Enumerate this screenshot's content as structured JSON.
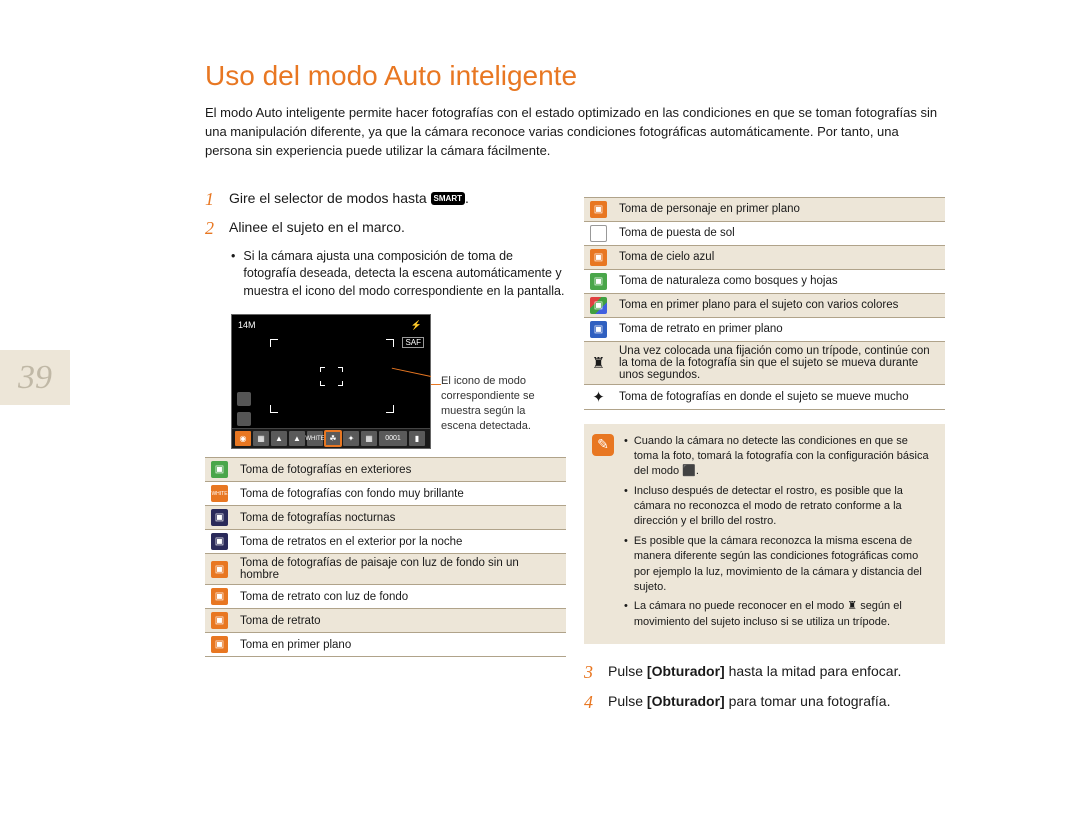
{
  "page_number": "39",
  "title": "Uso del modo Auto inteligente",
  "intro": "El modo Auto inteligente permite hacer fotografías con el estado optimizado en las condiciones en que se toman fotografías sin una manipulación diferente, ya que la cámara reconoce varias condiciones fotográficas automáticamente. Por tanto, una persona sin experiencia puede utilizar la cámara fácilmente.",
  "colors": {
    "accent": "#e87722",
    "page_tab_bg": "#ede6d8",
    "page_number_color": "#c0b8a6",
    "table_border": "#b0a38a"
  },
  "steps": {
    "s1": {
      "num": "1",
      "text": "Gire el selector de modos hasta",
      "icon_label": "SMART"
    },
    "s2": {
      "num": "2",
      "text": "Alinee el sujeto en el marco."
    },
    "s2_bullet": "Si la cámara ajusta una composición de toma de fotografía deseada, detecta la escena automáticamente y muestra el icono del modo correspondiente en la pantalla.",
    "s3": {
      "num": "3",
      "prefix": "Pulse ",
      "bold": "[Obturador]",
      "suffix": " hasta la mitad para enfocar."
    },
    "s4": {
      "num": "4",
      "prefix": "Pulse ",
      "bold": "[Obturador]",
      "suffix": " para tomar una fotografía."
    }
  },
  "lcd": {
    "resolution": "14M",
    "saf": "SAF",
    "counter": "0001",
    "caption": "El icono de modo correspondiente se muestra según la escena detectada."
  },
  "left_table": [
    {
      "color": "#4aa64a",
      "desc": "Toma de fotografías en exteriores"
    },
    {
      "color": "#e87722",
      "label": "WHITE",
      "desc": "Toma de fotografías con fondo muy brillante"
    },
    {
      "color": "#2a2a5a",
      "desc": "Toma de fotografías nocturnas"
    },
    {
      "color": "#2a2a5a",
      "desc": "Toma de retratos en el exterior por la noche"
    },
    {
      "color": "#e87722",
      "desc": "Toma de fotografías de paisaje con luz de fondo sin un hombre"
    },
    {
      "color": "#e87722",
      "desc": "Toma de retrato con luz de fondo"
    },
    {
      "color": "#e87722",
      "desc": "Toma de retrato"
    },
    {
      "color": "#e87722",
      "desc": "Toma en primer plano"
    }
  ],
  "right_table": [
    {
      "color": "#e87722",
      "desc": "Toma de personaje en primer plano"
    },
    {
      "color": "#ffffff",
      "border": "#999",
      "desc": "Toma de puesta de sol"
    },
    {
      "color": "#e87722",
      "desc": "Toma de cielo azul"
    },
    {
      "color": "#4aa64a",
      "desc": "Toma de naturaleza como bosques y hojas"
    },
    {
      "color": "#e04040",
      "multi": true,
      "desc": "Toma en primer plano para el sujeto con varios colores"
    },
    {
      "color": "#3060c0",
      "desc": "Toma de retrato en primer plano"
    },
    {
      "glyph": "♜",
      "plain": true,
      "desc": "Una vez colocada una fijación como un trípode, continúe con la toma de la fotografía sin que el sujeto se mueva durante unos segundos."
    },
    {
      "glyph": "✦",
      "plain": true,
      "desc": "Toma de fotografías en donde el sujeto se mueve mucho"
    }
  ],
  "notes": [
    "Cuando la cámara no detecte las condiciones en que se toma la foto, tomará la fotografía con la configuración básica del modo ⬛.",
    "Incluso después de detectar el rostro, es posible que la cámara no reconozca el modo de retrato conforme a la dirección y el brillo del rostro.",
    "Es posible que la cámara reconozca la misma escena de manera diferente según las condiciones fotográficas como por ejemplo la luz, movimiento de la cámara y distancia del sujeto.",
    "La cámara no puede reconocer en el modo ♜ según el movimiento del sujeto incluso si se utiliza un trípode."
  ]
}
